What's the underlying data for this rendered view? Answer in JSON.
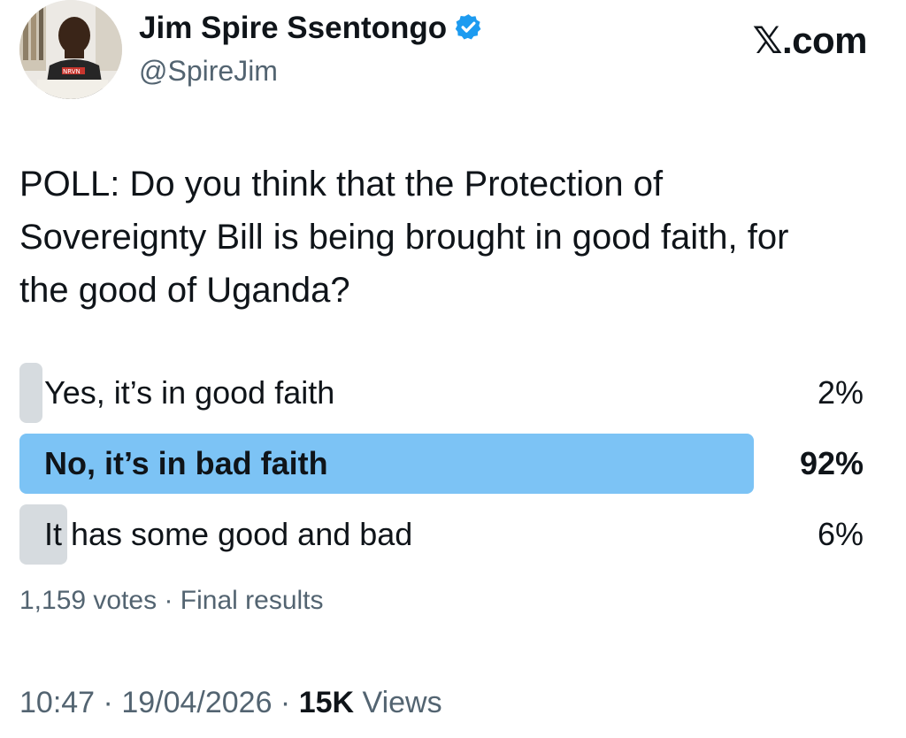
{
  "author": {
    "name": "Jim Spire Ssentongo",
    "handle": "@SpireJim",
    "avatar_shirt_text": "NRVN"
  },
  "brand": "𝕏.com",
  "tweet": {
    "text": "POLL: Do you think that the Protection of\nSovereignty Bill is being  brought in good faith, for\nthe good of Uganda?"
  },
  "poll": {
    "options": [
      {
        "label": "Yes, it’s in good faith",
        "percent_label": "2%",
        "percent": 2,
        "winner": false
      },
      {
        "label": "No, it’s in bad faith",
        "percent_label": "92%",
        "percent": 92,
        "winner": true
      },
      {
        "label": "It has some good and bad",
        "percent_label": "6%",
        "percent": 6,
        "winner": false
      }
    ],
    "votes": "1,159 votes",
    "separator": " · ",
    "status": "Final results"
  },
  "meta": {
    "time": "10:47",
    "date": "19/04/2026",
    "separator": " · ",
    "views_count": "15K",
    "views_label": " Views"
  },
  "colors": {
    "winner_bar": "#7cc3f5",
    "loser_bar": "#d6dbdf",
    "verified": "#1d9bf0",
    "secondary_text": "#536471"
  }
}
